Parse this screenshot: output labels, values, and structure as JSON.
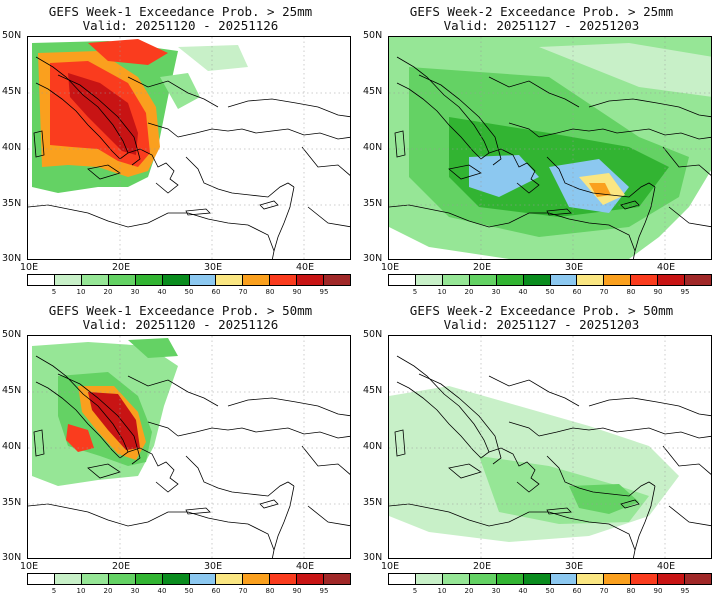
{
  "panels": [
    {
      "title": "GEFS Week-1 Exceedance Prob. > 25mm",
      "valid": "Valid: 20251120 - 20251126"
    },
    {
      "title": "GEFS Week-2 Exceedance Prob. > 25mm",
      "valid": "Valid: 20251127 - 20251203"
    },
    {
      "title": "GEFS Week-1 Exceedance Prob. > 50mm",
      "valid": "Valid: 20251120 - 20251126"
    },
    {
      "title": "GEFS Week-2 Exceedance Prob. > 50mm",
      "valid": "Valid: 20251127 - 20251203"
    }
  ],
  "lat_labels": [
    "50N",
    "45N",
    "40N",
    "35N",
    "30N"
  ],
  "lon_labels": [
    "10E",
    "20E",
    "30E",
    "40E"
  ],
  "legend": {
    "ticks": [
      "5",
      "10",
      "20",
      "30",
      "40",
      "50",
      "60",
      "70",
      "80",
      "90",
      "95"
    ],
    "colors": [
      "#ffffff",
      "#c8f0c8",
      "#96e696",
      "#64d264",
      "#32b432",
      "#0a8c1e",
      "#8cc8f0",
      "#fae682",
      "#faa01e",
      "#fa3c1e",
      "#c81414",
      "#a02828"
    ]
  }
}
